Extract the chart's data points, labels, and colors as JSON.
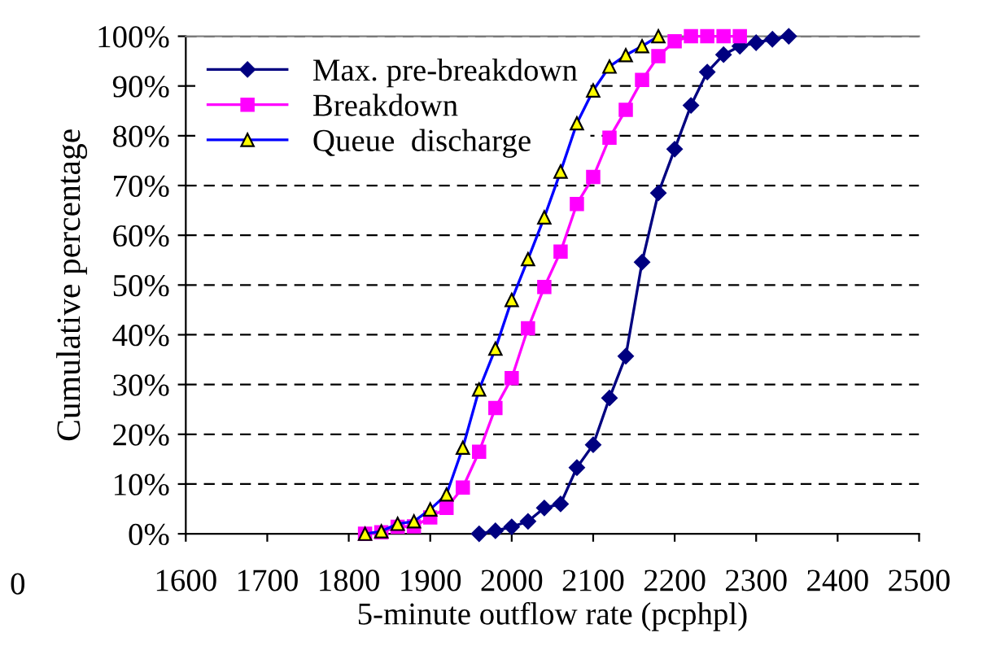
{
  "chart_data": {
    "type": "line",
    "xlabel": "5-minute outflow rate (pcphpl)",
    "ylabel": "Cumulative percentage",
    "annotations": [
      "0"
    ],
    "xlim": [
      1600,
      2500
    ],
    "xticks": [
      1600,
      1700,
      1800,
      1900,
      2000,
      2100,
      2200,
      2300,
      2400,
      2500
    ],
    "ylim": [
      0,
      100
    ],
    "yticks": [
      {
        "value": 0,
        "label": "0%"
      },
      {
        "value": 10,
        "label": "10%"
      },
      {
        "value": 20,
        "label": "20%"
      },
      {
        "value": 30,
        "label": "30%"
      },
      {
        "value": 40,
        "label": "40%"
      },
      {
        "value": 50,
        "label": "50%"
      },
      {
        "value": 60,
        "label": "60%"
      },
      {
        "value": 70,
        "label": "70%"
      },
      {
        "value": 80,
        "label": "80%"
      },
      {
        "value": 90,
        "label": "90%"
      },
      {
        "value": 100,
        "label": "100%"
      }
    ],
    "grid": "y",
    "legend": "top left",
    "line_style": "solid",
    "series": [
      {
        "name": "Max. pre-breakdown",
        "color": "#000080",
        "marker": "diamond",
        "x": [
          1960,
          1980,
          2000,
          2020,
          2040,
          2060,
          2080,
          2100,
          2120,
          2140,
          2160,
          2180,
          2200,
          2220,
          2240,
          2260,
          2280,
          2300,
          2320,
          2340
        ],
        "values": [
          0,
          0.6,
          1.4,
          2.5,
          5.2,
          6,
          13.3,
          17.9,
          27.3,
          35.7,
          54.6,
          68.5,
          77.3,
          86.1,
          92.8,
          96.3,
          98,
          98.7,
          99.4,
          100
        ]
      },
      {
        "name": "Breakdown",
        "color": "#ff00ff",
        "marker": "square",
        "x": [
          1820,
          1840,
          1860,
          1880,
          1900,
          1920,
          1940,
          1960,
          1980,
          2000,
          2020,
          2040,
          2060,
          2080,
          2100,
          2120,
          2140,
          2160,
          2180,
          2200,
          2220,
          2240,
          2260,
          2280
        ],
        "values": [
          0,
          0.3,
          1.4,
          1.5,
          3.3,
          5.2,
          9.3,
          16.5,
          25.3,
          31.3,
          41.3,
          49.6,
          56.7,
          66.3,
          71.7,
          79.6,
          85.2,
          91.2,
          96,
          99,
          100,
          100,
          100,
          100
        ]
      },
      {
        "name": "Queue  discharge",
        "color": "#0000ff",
        "marker": "triangle",
        "x": [
          1820,
          1840,
          1860,
          1880,
          1900,
          1920,
          1940,
          1960,
          1980,
          2000,
          2020,
          2040,
          2060,
          2080,
          2100,
          2120,
          2140,
          2160,
          2180
        ],
        "values": [
          0,
          0.5,
          2,
          2.5,
          4.9,
          7.9,
          17.3,
          29,
          37.2,
          47,
          55.2,
          63.6,
          72.8,
          82.5,
          89.1,
          93.9,
          96.2,
          98,
          100
        ]
      }
    ]
  }
}
